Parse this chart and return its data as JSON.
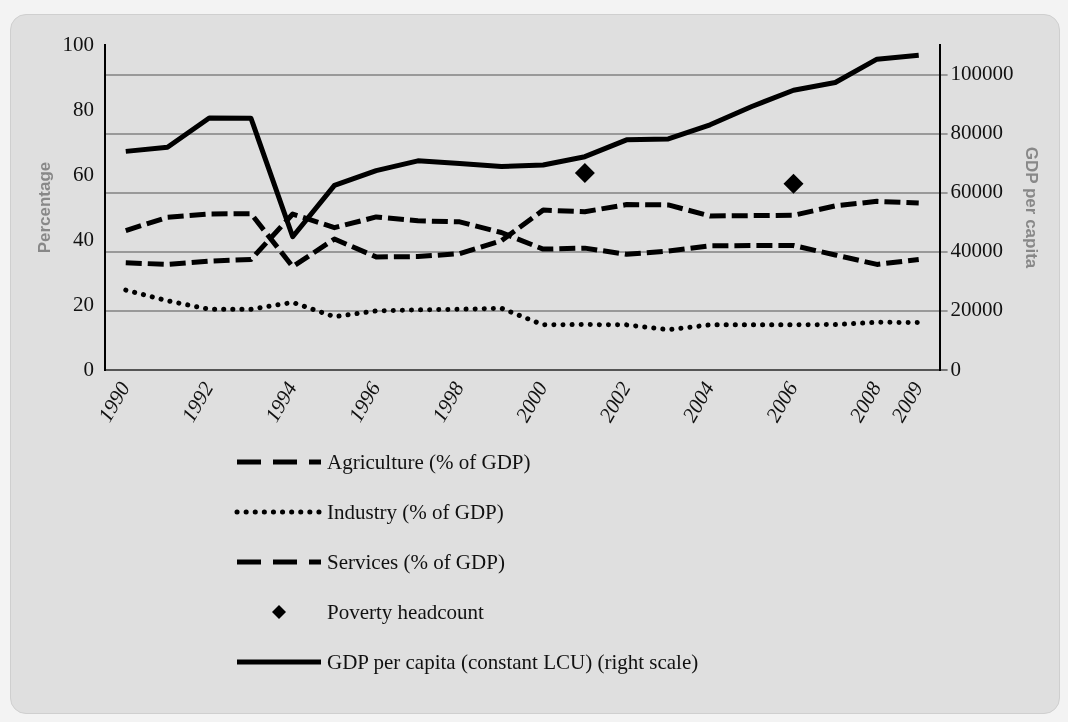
{
  "chart_data": {
    "type": "line",
    "categories": [
      "1990",
      null,
      "1992",
      null,
      "1994",
      null,
      "1996",
      null,
      "1998",
      null,
      "2000",
      null,
      "2002",
      null,
      "2004",
      null,
      "2006",
      null,
      "2008",
      "2009"
    ],
    "ylabel": "Percentage",
    "y2label": "GDP per capita",
    "ylim": [
      0,
      100
    ],
    "yticks": [
      0,
      20,
      40,
      60,
      80,
      100
    ],
    "y2lim": [
      0,
      110000
    ],
    "y2ticks": [
      0,
      20000,
      40000,
      60000,
      80000,
      100000
    ],
    "grid": "y",
    "legend": "bottom",
    "series": [
      {
        "name": "Agriculture (% of GDP)",
        "color": "#000000",
        "line_style": "dashed",
        "marker": "none",
        "values": [
          33,
          32.5,
          33.5,
          34,
          48,
          43.8,
          47.1,
          45.9,
          45.6,
          42.3,
          37.2,
          37.5,
          35.6,
          36.6,
          38.2,
          38.3,
          38.3,
          35.4,
          32.5,
          34
        ]
      },
      {
        "name": "Industry (% of GDP)",
        "color": "#000000",
        "line_style": "dotted",
        "marker": "none",
        "values": [
          24.6,
          21.3,
          18.7,
          18.7,
          20.8,
          16.4,
          18.2,
          18.5,
          18.7,
          19,
          13.9,
          14,
          13.9,
          12.4,
          13.9,
          13.9,
          13.9,
          14,
          14.7,
          14.6
        ]
      },
      {
        "name": "Services (% of GDP)",
        "color": "#000000",
        "line_style": "dashed",
        "marker": "none",
        "values": [
          42.9,
          47,
          48,
          48.1,
          31.8,
          40.3,
          34.8,
          34.9,
          35.8,
          39.8,
          49.2,
          48.7,
          50.9,
          50.8,
          47.4,
          47.5,
          47.6,
          50.5,
          51.9,
          51.4
        ]
      },
      {
        "name": "Poverty headcount",
        "type": "scatter",
        "color": "#000000",
        "marker": "diamond",
        "values": [
          null,
          null,
          null,
          null,
          null,
          null,
          null,
          null,
          null,
          null,
          null,
          60.6,
          null,
          null,
          null,
          null,
          57.3,
          null,
          null,
          null
        ]
      },
      {
        "name": "GDP per capita (constant LCU) (right scale)",
        "axis": "y2",
        "color": "#000000",
        "line_style": "solid",
        "marker": "none",
        "values": [
          74000,
          75400,
          85300,
          85200,
          45100,
          62500,
          67500,
          70800,
          69900,
          68900,
          69400,
          72200,
          77900,
          78200,
          83000,
          89200,
          94700,
          97300,
          105200,
          106500
        ]
      }
    ]
  }
}
